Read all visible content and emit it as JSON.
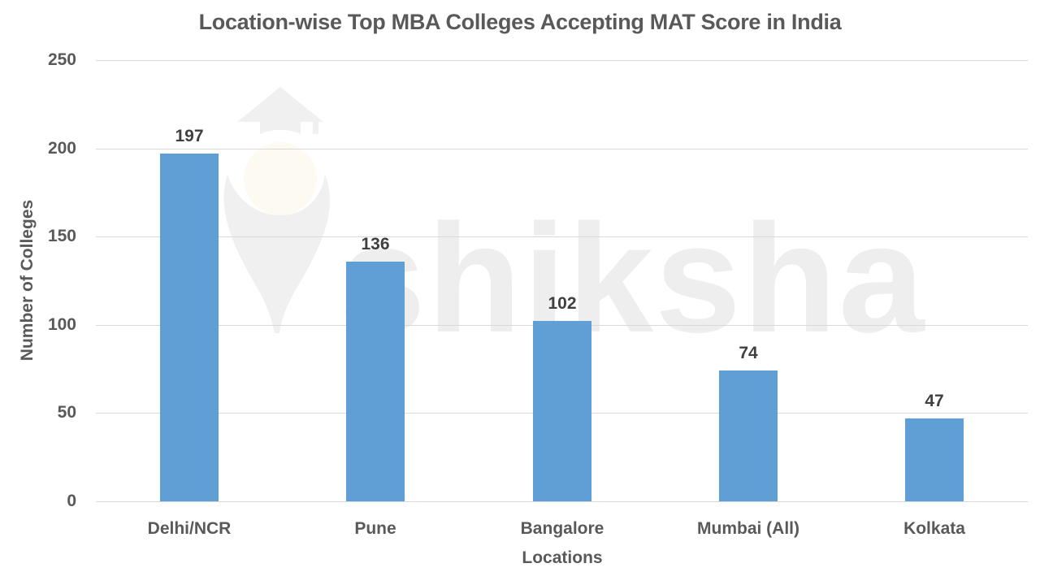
{
  "chart_data": {
    "type": "bar",
    "title": "Location-wise Top MBA Colleges Accepting MAT Score in India",
    "xlabel": "Locations",
    "ylabel": "Number of Colleges",
    "categories": [
      "Delhi/NCR",
      "Pune",
      "Bangalore",
      "Mumbai (All)",
      "Kolkata"
    ],
    "values": [
      197,
      136,
      102,
      74,
      47
    ],
    "data_labels": [
      "197",
      "136",
      "102",
      "74",
      "47"
    ],
    "ylim": [
      0,
      250
    ],
    "yticks": [
      0,
      50,
      100,
      150,
      200,
      250
    ],
    "ytick_labels": [
      "0",
      "50",
      "100",
      "150",
      "200",
      "250"
    ],
    "grid": true,
    "legend": null,
    "bar_color": "#5b9bd5"
  },
  "watermark": {
    "text": "shiksha",
    "icon": "graduation-cap-lightbulb-icon"
  }
}
